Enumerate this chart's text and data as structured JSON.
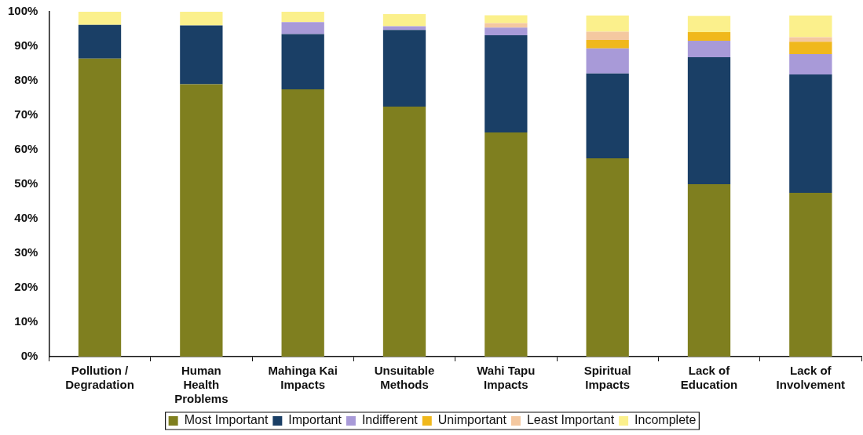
{
  "chart_data": {
    "type": "bar",
    "stacked": true,
    "categories": [
      "Pollution / Degradation",
      "Human Health Problems",
      "Mahinga Kai Impacts",
      "Unsuitable Methods",
      "Wahi Tapu Impacts",
      "Spiritual Impacts",
      "Lack of Education",
      "Lack of Involvement"
    ],
    "series": [
      {
        "name": "Most Important",
        "color": "#7f7f1f",
        "values": [
          86.4,
          79,
          77.5,
          72.5,
          65,
          57.5,
          50,
          47.5
        ]
      },
      {
        "name": "Important",
        "color": "#1a3f66",
        "values": [
          9.8,
          17,
          16,
          22.2,
          28.2,
          24.6,
          36.8,
          34.3
        ]
      },
      {
        "name": "Indifferent",
        "color": "#a89ad8",
        "values": [
          null,
          null,
          3.5,
          1.1,
          2.2,
          7.3,
          4.8,
          5.9
        ]
      },
      {
        "name": "Unimportant",
        "color": "#f0b81c",
        "values": [
          null,
          null,
          null,
          null,
          null,
          2.4,
          2.5,
          3.6
        ]
      },
      {
        "name": "Least Important",
        "color": "#f4c8a0",
        "values": [
          null,
          null,
          null,
          null,
          1.3,
          2.4,
          null,
          1.3
        ]
      },
      {
        "name": "Incomplete",
        "color": "#fbf08c",
        "values": [
          3.8,
          4,
          3,
          3.5,
          2.3,
          4.7,
          4.7,
          6.3
        ]
      }
    ],
    "ylim": [
      0,
      100
    ],
    "yticks": [
      {
        "value": 0,
        "label": "0%"
      },
      {
        "value": 10,
        "label": "10%"
      },
      {
        "value": 20,
        "label": "20%"
      },
      {
        "value": 30,
        "label": "30%"
      },
      {
        "value": 40,
        "label": "40%"
      },
      {
        "value": 50,
        "label": "50%"
      },
      {
        "value": 60,
        "label": "60%"
      },
      {
        "value": 70,
        "label": "70%"
      },
      {
        "value": 80,
        "label": "80%"
      },
      {
        "value": 90,
        "label": "90%"
      },
      {
        "value": 100,
        "label": "100%"
      }
    ],
    "grid": false,
    "legend": "bottom"
  }
}
